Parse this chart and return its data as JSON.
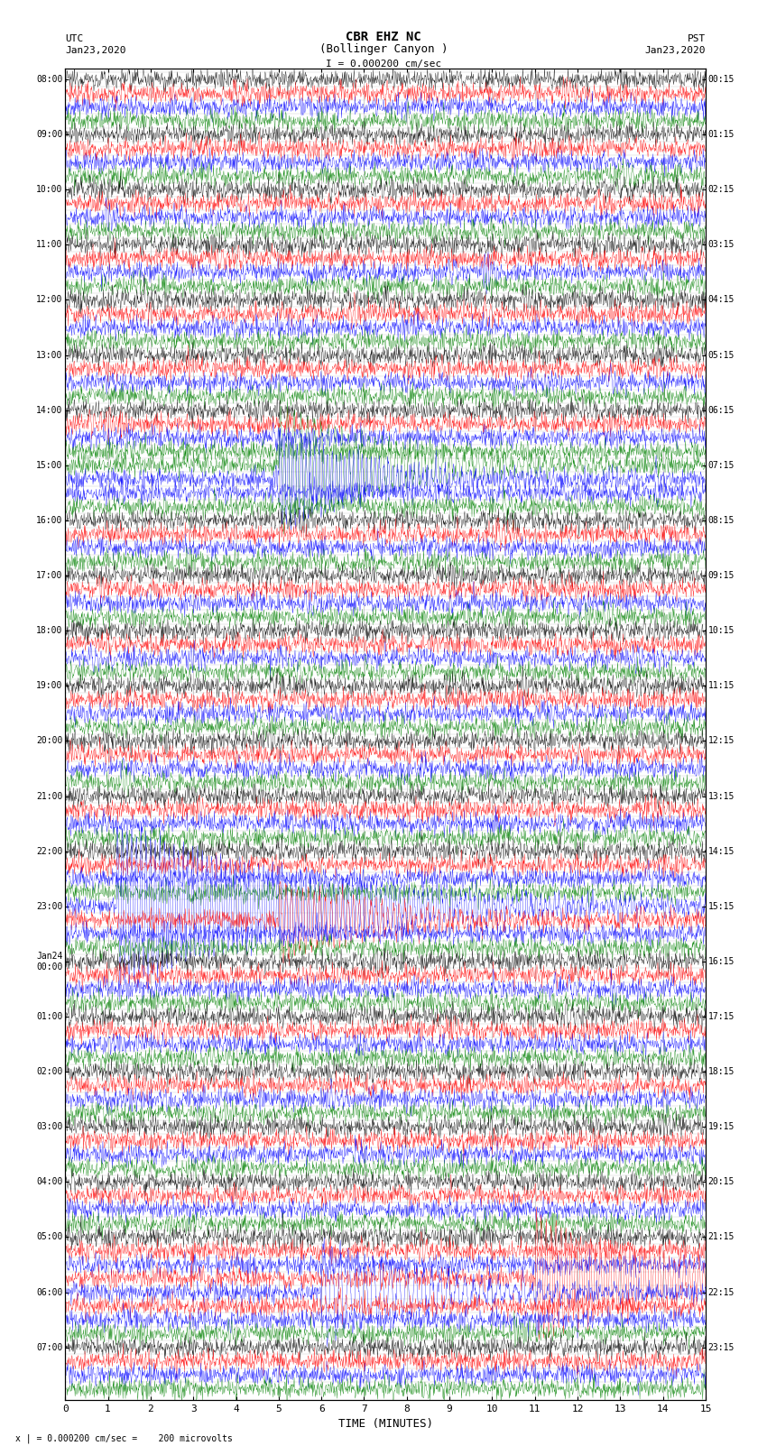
{
  "title_line1": "CBR EHZ NC",
  "title_line2": "(Bollinger Canyon )",
  "scale_label": "I = 0.000200 cm/sec",
  "utc_label": "UTC",
  "utc_date": "Jan23,2020",
  "pst_label": "PST",
  "pst_date": "Jan23,2020",
  "bottom_label": "x | = 0.000200 cm/sec =    200 microvolts",
  "xlabel": "TIME (MINUTES)",
  "xlim": [
    0,
    15
  ],
  "xticks": [
    0,
    1,
    2,
    3,
    4,
    5,
    6,
    7,
    8,
    9,
    10,
    11,
    12,
    13,
    14,
    15
  ],
  "row_colors": [
    "black",
    "red",
    "blue",
    "green"
  ],
  "background_color": "white",
  "grid_color": "#aaaaaa",
  "figsize": [
    8.5,
    16.13
  ],
  "dpi": 100,
  "left_times": [
    "08:00",
    "",
    "",
    "",
    "09:00",
    "",
    "",
    "",
    "10:00",
    "",
    "",
    "",
    "11:00",
    "",
    "",
    "",
    "12:00",
    "",
    "",
    "",
    "13:00",
    "",
    "",
    "",
    "14:00",
    "",
    "",
    "",
    "15:00",
    "",
    "",
    "",
    "16:00",
    "",
    "",
    "",
    "17:00",
    "",
    "",
    "",
    "18:00",
    "",
    "",
    "",
    "19:00",
    "",
    "",
    "",
    "20:00",
    "",
    "",
    "",
    "21:00",
    "",
    "",
    "",
    "22:00",
    "",
    "",
    "",
    "23:00",
    "",
    "",
    "",
    "Jan24\n00:00",
    "",
    "",
    "",
    "01:00",
    "",
    "",
    "",
    "02:00",
    "",
    "",
    "",
    "03:00",
    "",
    "",
    "",
    "04:00",
    "",
    "",
    "",
    "05:00",
    "",
    "",
    "",
    "06:00",
    "",
    "",
    "",
    "07:00",
    "",
    "",
    ""
  ],
  "right_times": [
    "00:15",
    "",
    "",
    "",
    "01:15",
    "",
    "",
    "",
    "02:15",
    "",
    "",
    "",
    "03:15",
    "",
    "",
    "",
    "04:15",
    "",
    "",
    "",
    "05:15",
    "",
    "",
    "",
    "06:15",
    "",
    "",
    "",
    "07:15",
    "",
    "",
    "",
    "08:15",
    "",
    "",
    "",
    "09:15",
    "",
    "",
    "",
    "10:15",
    "",
    "",
    "",
    "11:15",
    "",
    "",
    "",
    "12:15",
    "",
    "",
    "",
    "13:15",
    "",
    "",
    "",
    "14:15",
    "",
    "",
    "",
    "15:15",
    "",
    "",
    "",
    "16:15",
    "",
    "",
    "",
    "17:15",
    "",
    "",
    "",
    "18:15",
    "",
    "",
    "",
    "19:15",
    "",
    "",
    "",
    "20:15",
    "",
    "",
    "",
    "21:15",
    "",
    "",
    "",
    "22:15",
    "",
    "",
    "",
    "23:15",
    "",
    "",
    ""
  ]
}
